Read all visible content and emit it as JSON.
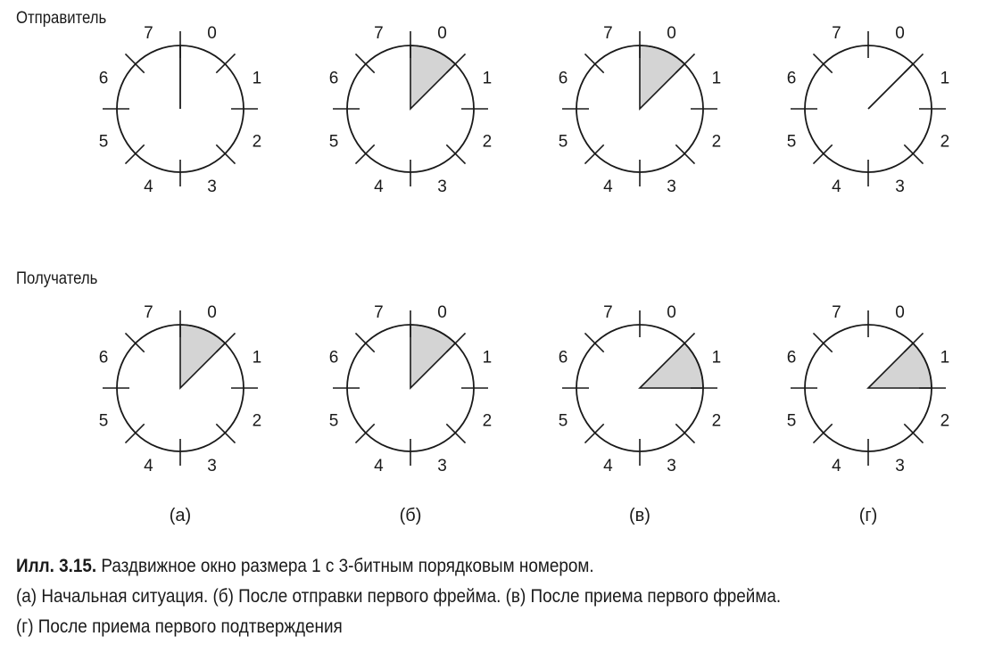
{
  "rows": [
    {
      "label": "Отправитель",
      "dials": [
        {
          "pointer": 0,
          "sector": null
        },
        {
          "pointer": null,
          "sector": 0
        },
        {
          "pointer": null,
          "sector": 0
        },
        {
          "pointer": 1,
          "sector": null
        }
      ]
    },
    {
      "label": "Получатель",
      "dials": [
        {
          "pointer": null,
          "sector": 0
        },
        {
          "pointer": null,
          "sector": 0
        },
        {
          "pointer": null,
          "sector": 1
        },
        {
          "pointer": null,
          "sector": 1
        }
      ]
    }
  ],
  "numbers": [
    "0",
    "1",
    "2",
    "3",
    "4",
    "5",
    "6",
    "7"
  ],
  "column_labels": [
    "(а)",
    "(б)",
    "(в)",
    "(г)"
  ],
  "caption": {
    "lead": "Илл. 3.15.",
    "line1": "Раздвижное окно размера 1 с 3-битным порядковым номером.",
    "line2": "(а) Начальная ситуация. (б) После отправки первого фрейма. (в) После приема первого фрейма.",
    "line3": "(г) После приема первого подтверждения"
  },
  "colors": {
    "stroke": "#1a1a1a",
    "fill": "#d4d4d4"
  }
}
